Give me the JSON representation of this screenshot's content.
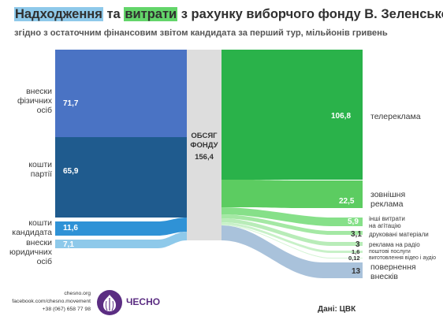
{
  "title": {
    "part1": "Надходження",
    "part2": " та ",
    "part3": "витрати",
    "part4": " з рахунку виборчого фонду В. Зеленського"
  },
  "subtitle": "згідно з остаточним фінансовим звітом кандидата за перший тур, мільйонів гривень",
  "center": {
    "line1": "ОБСЯГ",
    "line2": "ФОНДУ",
    "value": "156,4"
  },
  "inflows": [
    {
      "label": "внески\nфізичних\nосіб",
      "value": "71,7",
      "color": "#4a73c4"
    },
    {
      "label": "кошти\nпартії",
      "value": "65,9",
      "color": "#1f5b8e"
    },
    {
      "label": "кошти\nкандидата",
      "value": "11,6",
      "color": "#2f92d6"
    },
    {
      "label": "внески\nюридичних\nосіб",
      "value": "7,1",
      "color": "#8ec9ea"
    }
  ],
  "outflows": [
    {
      "label": "телереклама",
      "value": "106,8",
      "color": "#2ab24a"
    },
    {
      "label": "зовнішня\nреклама",
      "value": "22,5",
      "color": "#5ccc61"
    },
    {
      "label": "інші витрати\nна агітацію",
      "value": "5,9",
      "color": "#86e089"
    },
    {
      "label": "друковані матеріали",
      "value": "3,1",
      "color": "#a4e8a4"
    },
    {
      "label": "реклама на радіо",
      "value": "3",
      "color": "#b8ecb8"
    },
    {
      "label": "поштові послуги",
      "value": "1,6",
      "color": "#c8f1c8"
    },
    {
      "label": "виготовлення відео і аудіо",
      "value": "0,12",
      "color": "#d2f4d2"
    },
    {
      "label": "повернення\nвнесків",
      "value": "13",
      "color": "#a9c2db"
    }
  ],
  "center_bar_color": "#dddddd",
  "footer": {
    "site": "chesno.org",
    "facebook": "facebook.com/chesno.movement",
    "phone": "+38 (067) 658 77 98",
    "logo": "ЧЕСНО"
  },
  "source": "Дані: ЦВК"
}
